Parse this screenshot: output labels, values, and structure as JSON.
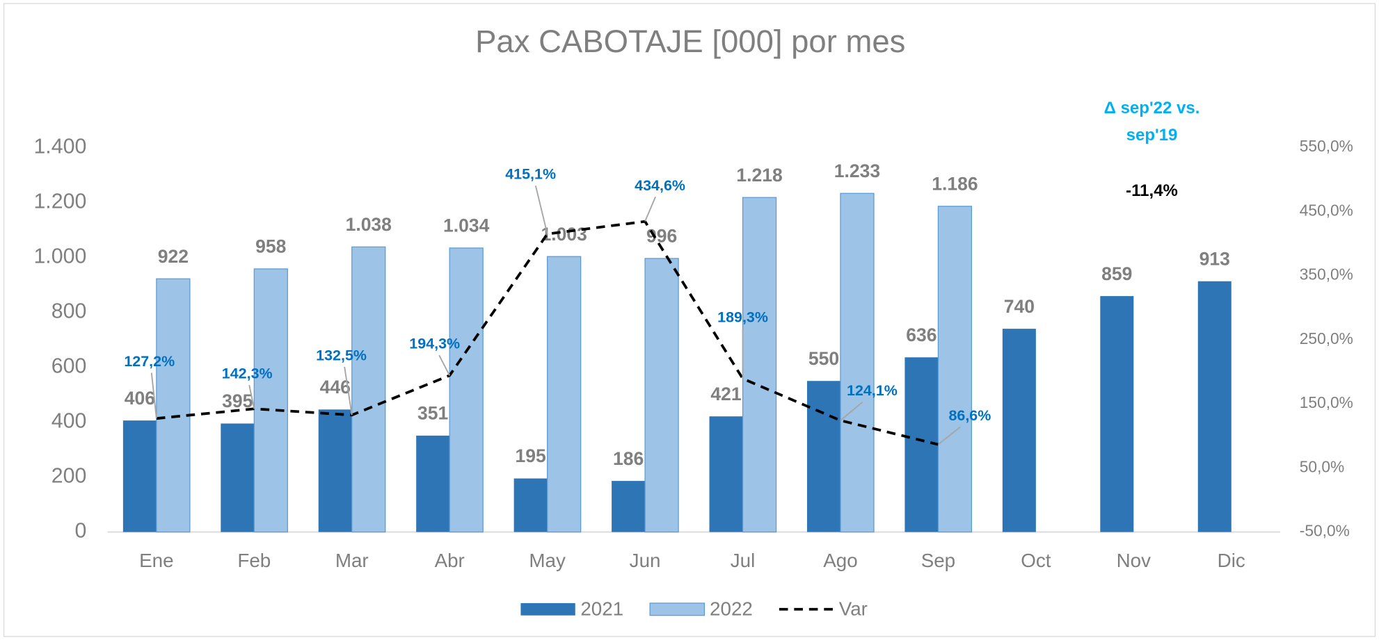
{
  "chart_data": {
    "type": "bar",
    "title": "Pax CABOTAJE [000] por mes",
    "categories": [
      "Ene",
      "Feb",
      "Mar",
      "Abr",
      "May",
      "Jun",
      "Jul",
      "Ago",
      "Sep",
      "Oct",
      "Nov",
      "Dic"
    ],
    "series": [
      {
        "name": "2021",
        "type": "bar",
        "color": "#2e75b6",
        "values": [
          406,
          395,
          446,
          351,
          195,
          186,
          421,
          550,
          636,
          740,
          859,
          913
        ]
      },
      {
        "name": "2022",
        "type": "bar",
        "color": "#9dc3e6",
        "values": [
          922,
          958,
          1038,
          1034,
          1003,
          996,
          1218,
          1233,
          1186,
          null,
          null,
          null
        ],
        "value_labels": [
          "922",
          "958",
          "1.038",
          "1.034",
          "1.003",
          "996",
          "1.218",
          "1.233",
          "1.186",
          null,
          null,
          null
        ]
      },
      {
        "name": "Var",
        "type": "line",
        "axis": "y2",
        "color": "#000000",
        "values": [
          127.2,
          142.3,
          132.5,
          194.3,
          415.1,
          434.6,
          189.3,
          124.1,
          86.6,
          null,
          null,
          null
        ],
        "value_labels": [
          "127,2%",
          "142,3%",
          "132,5%",
          "194,3%",
          "415,1%",
          "434,6%",
          "189,3%",
          "124,1%",
          "86,6%",
          null,
          null,
          null
        ]
      }
    ],
    "ylim": [
      0,
      1400
    ],
    "yticks": [
      0,
      200,
      400,
      600,
      800,
      {
        "value": 1000,
        "label": "1.000"
      },
      {
        "value": 1200,
        "label": "1.200"
      },
      {
        "value": 1400,
        "label": "1.400"
      }
    ],
    "y2lim": [
      -50,
      550
    ],
    "y2ticks": [
      {
        "value": -50,
        "label": "-50,0%"
      },
      {
        "value": 50,
        "label": "50,0%"
      },
      {
        "value": 150,
        "label": "150,0%"
      },
      {
        "value": 250,
        "label": "250,0%"
      },
      {
        "value": 350,
        "label": "350,0%"
      },
      {
        "value": 450,
        "label": "450,0%"
      },
      {
        "value": 550,
        "label": "550,0%"
      }
    ],
    "annotation": {
      "lines": [
        "Δ sep'22 vs.",
        "sep'19"
      ],
      "value": -11.4,
      "value_label": "-11,4%"
    },
    "legend": "bottom"
  }
}
